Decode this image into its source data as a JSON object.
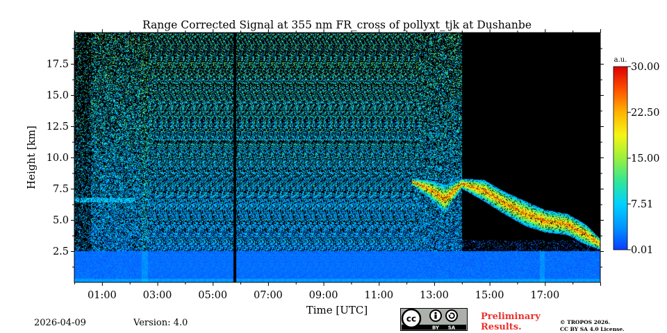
{
  "chart_data": {
    "type": "heatmap",
    "title": "Range Corrected Signal at 355 nm FR_cross of pollyxt_tjk at Dushanbe",
    "xlabel": "Time [UTC]",
    "ylabel": "Height [km]",
    "xlim_hours": [
      0,
      19
    ],
    "ylim_km": [
      0,
      20
    ],
    "x_ticks": [
      {
        "hour": 1,
        "label": "01:00"
      },
      {
        "hour": 3,
        "label": "03:00"
      },
      {
        "hour": 5,
        "label": "05:00"
      },
      {
        "hour": 7,
        "label": "07:00"
      },
      {
        "hour": 9,
        "label": "09:00"
      },
      {
        "hour": 11,
        "label": "11:00"
      },
      {
        "hour": 13,
        "label": "13:00"
      },
      {
        "hour": 15,
        "label": "15:00"
      },
      {
        "hour": 17,
        "label": "17:00"
      }
    ],
    "y_ticks": [
      {
        "km": 2.5,
        "label": "2.5"
      },
      {
        "km": 5.0,
        "label": "5.0"
      },
      {
        "km": 7.5,
        "label": "7.5"
      },
      {
        "km": 10.0,
        "label": "10.0"
      },
      {
        "km": 12.5,
        "label": "12.5"
      },
      {
        "km": 15.0,
        "label": "15.0"
      },
      {
        "km": 17.5,
        "label": "17.5"
      }
    ],
    "colorbar": {
      "unit": "a.u.",
      "range": [
        0.01,
        30.0
      ],
      "ticks": [
        "0.01",
        "7.51",
        "15.00",
        "22.50",
        "30.00"
      ],
      "colors": [
        "#0a3cff",
        "#0096ff",
        "#00d2ff",
        "#32e696",
        "#9bf03c",
        "#f5f514",
        "#ffb400",
        "#ff5000",
        "#dc0000"
      ]
    },
    "features": {
      "boundary_layer_top_km": 2.5,
      "data_gap_hour": 5.8,
      "night_noise_end_hour": 14.0,
      "residual_layer": {
        "height_km": 6.6,
        "from_hour": 0,
        "to_hour": 2.2
      },
      "cirrus_layer": [
        {
          "hour": 12.2,
          "base_km": 7.8,
          "top_km": 8.3
        },
        {
          "hour": 12.8,
          "base_km": 6.8,
          "top_km": 8.2
        },
        {
          "hour": 13.4,
          "base_km": 5.5,
          "top_km": 7.8
        },
        {
          "hour": 14.0,
          "base_km": 7.5,
          "top_km": 8.3
        },
        {
          "hour": 14.8,
          "base_km": 6.5,
          "top_km": 8.2
        },
        {
          "hour": 15.5,
          "base_km": 5.5,
          "top_km": 7.3
        },
        {
          "hour": 16.3,
          "base_km": 4.5,
          "top_km": 6.5
        },
        {
          "hour": 17.0,
          "base_km": 4.0,
          "top_km": 5.8
        },
        {
          "hour": 17.8,
          "base_km": 3.8,
          "top_km": 5.5
        },
        {
          "hour": 18.5,
          "base_km": 3.0,
          "top_km": 4.6
        },
        {
          "hour": 19.0,
          "base_km": 2.6,
          "top_km": 3.5
        }
      ]
    }
  },
  "footer": {
    "date": "2026-04-09",
    "version": "Version: 4.0",
    "preliminary_line1": "Preliminary",
    "preliminary_line2": "Results.",
    "copyright_line1": "© TROPOS 2026.",
    "copyright_line2": "CC BY SA 4.0 License.",
    "license_badge": {
      "cc": "cc",
      "by": "BY",
      "sa": "SA"
    }
  }
}
